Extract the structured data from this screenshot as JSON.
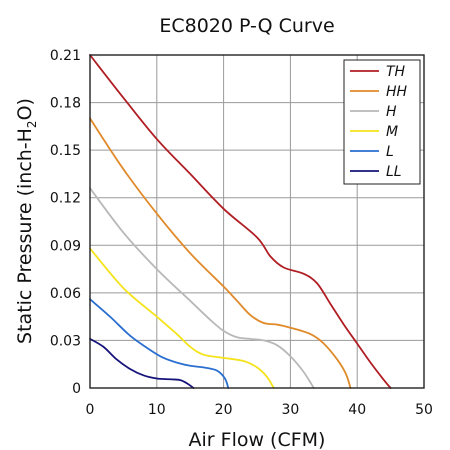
{
  "chart_data": {
    "type": "line",
    "title": "EC8020 P-Q Curve",
    "xlabel": "Air Flow (CFM)",
    "ylabel": {
      "main": "Static Pressure (inch-H",
      "sub": "2",
      "tail": "O)"
    },
    "xlim": [
      0,
      50
    ],
    "ylim": [
      0,
      0.21
    ],
    "xticks": [
      0,
      10,
      20,
      30,
      40,
      50
    ],
    "yticks": [
      0,
      0.03,
      0.06,
      0.09,
      0.12,
      0.15,
      0.18,
      0.21
    ],
    "xtick_labels": [
      "0",
      "10",
      "20",
      "30",
      "40",
      "50"
    ],
    "ytick_labels": [
      "0",
      "0.03",
      "0.06",
      "0.09",
      "0.12",
      "0.15",
      "0.18",
      "0.21"
    ],
    "grid": true,
    "legend_position": "top-right",
    "series": [
      {
        "name": "TH",
        "color": "#b01e24",
        "points": [
          [
            0,
            0.21
          ],
          [
            5,
            0.183
          ],
          [
            10,
            0.157
          ],
          [
            15,
            0.135
          ],
          [
            20,
            0.113
          ],
          [
            25,
            0.095
          ],
          [
            27,
            0.083
          ],
          [
            29,
            0.076
          ],
          [
            32,
            0.072
          ],
          [
            34,
            0.066
          ],
          [
            36,
            0.053
          ],
          [
            38,
            0.04
          ],
          [
            40,
            0.028
          ],
          [
            42,
            0.016
          ],
          [
            44,
            0.005
          ],
          [
            45,
            0
          ]
        ]
      },
      {
        "name": "HH",
        "color": "#e08a2a",
        "points": [
          [
            0,
            0.17
          ],
          [
            5,
            0.138
          ],
          [
            10,
            0.11
          ],
          [
            15,
            0.085
          ],
          [
            20,
            0.064
          ],
          [
            22,
            0.055
          ],
          [
            24,
            0.046
          ],
          [
            26,
            0.041
          ],
          [
            28,
            0.04
          ],
          [
            30,
            0.038
          ],
          [
            33,
            0.034
          ],
          [
            35,
            0.028
          ],
          [
            37,
            0.018
          ],
          [
            38.3,
            0.009
          ],
          [
            39,
            0
          ]
        ]
      },
      {
        "name": "H",
        "color": "#b8b8b8",
        "points": [
          [
            0,
            0.126
          ],
          [
            5,
            0.098
          ],
          [
            10,
            0.075
          ],
          [
            15,
            0.055
          ],
          [
            18,
            0.043
          ],
          [
            20,
            0.036
          ],
          [
            22,
            0.032
          ],
          [
            24,
            0.031
          ],
          [
            26,
            0.03
          ],
          [
            28,
            0.027
          ],
          [
            30,
            0.02
          ],
          [
            32,
            0.01
          ],
          [
            33.5,
            0
          ]
        ]
      },
      {
        "name": "M",
        "color": "#f5e31a",
        "points": [
          [
            0,
            0.088
          ],
          [
            5,
            0.063
          ],
          [
            10,
            0.045
          ],
          [
            13,
            0.034
          ],
          [
            15,
            0.026
          ],
          [
            17,
            0.021
          ],
          [
            20,
            0.019
          ],
          [
            23,
            0.017
          ],
          [
            25,
            0.013
          ],
          [
            26.5,
            0.007
          ],
          [
            27.5,
            0
          ]
        ]
      },
      {
        "name": "L",
        "color": "#2a6fd0",
        "points": [
          [
            0,
            0.056
          ],
          [
            3,
            0.045
          ],
          [
            6,
            0.033
          ],
          [
            9,
            0.024
          ],
          [
            11,
            0.019
          ],
          [
            13,
            0.016
          ],
          [
            15,
            0.014
          ],
          [
            17,
            0.013
          ],
          [
            19,
            0.011
          ],
          [
            20.2,
            0.006
          ],
          [
            20.7,
            0
          ]
        ]
      },
      {
        "name": "LL",
        "color": "#16147a",
        "points": [
          [
            0,
            0.031
          ],
          [
            2,
            0.026
          ],
          [
            4,
            0.018
          ],
          [
            6,
            0.012
          ],
          [
            8,
            0.008
          ],
          [
            10,
            0.006
          ],
          [
            12,
            0.0055
          ],
          [
            13.5,
            0.005
          ],
          [
            14.5,
            0.003
          ],
          [
            15.5,
            0
          ]
        ]
      }
    ]
  }
}
